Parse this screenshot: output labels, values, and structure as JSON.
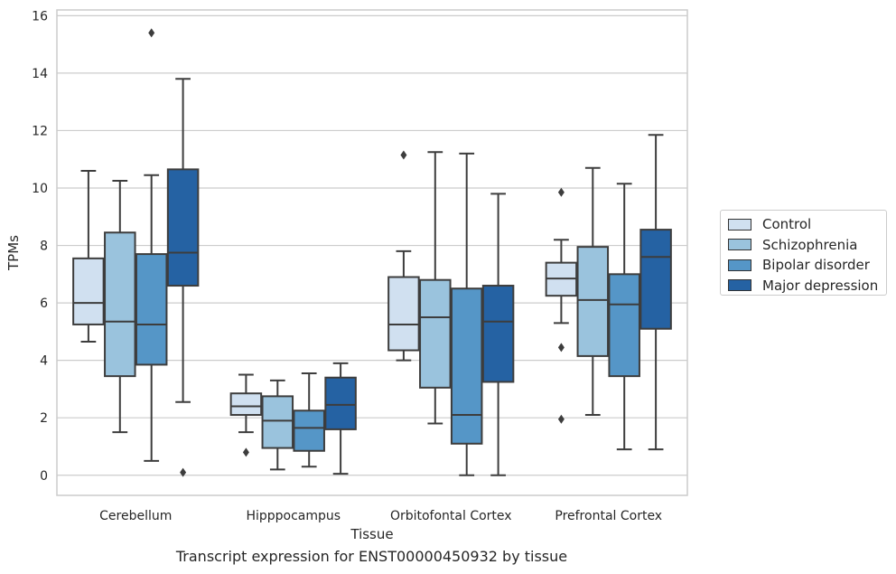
{
  "chart_data": {
    "type": "boxplot",
    "title": "",
    "xlabel": "Tissue",
    "ylabel": "TPMs",
    "caption": "Transcript expression for ENST00000450932 by tissue",
    "ylim": [
      -0.7,
      16.2
    ],
    "yticks": [
      0,
      2,
      4,
      6,
      8,
      10,
      12,
      14,
      16
    ],
    "grid": true,
    "legend_position": "right",
    "categories": [
      "Cerebellum",
      "Hipppocampus",
      "Orbitofontal Cortex",
      "Prefrontal Cortex"
    ],
    "series": [
      {
        "name": "Control",
        "color": "#d0e0f0",
        "boxes": [
          {
            "low": 4.65,
            "q1": 5.25,
            "median": 6.0,
            "q3": 7.55,
            "high": 10.6,
            "outliers": []
          },
          {
            "low": 1.5,
            "q1": 2.1,
            "median": 2.4,
            "q3": 2.85,
            "high": 3.5,
            "outliers": [
              0.8
            ]
          },
          {
            "low": 4.0,
            "q1": 4.35,
            "median": 5.25,
            "q3": 6.9,
            "high": 7.8,
            "outliers": [
              11.15
            ]
          },
          {
            "low": 5.3,
            "q1": 6.25,
            "median": 6.85,
            "q3": 7.4,
            "high": 8.2,
            "outliers": [
              9.85,
              4.45,
              1.95
            ]
          }
        ]
      },
      {
        "name": "Schizophrenia",
        "color": "#9ac3dd",
        "boxes": [
          {
            "low": 1.5,
            "q1": 3.45,
            "median": 5.35,
            "q3": 8.45,
            "high": 10.25,
            "outliers": []
          },
          {
            "low": 0.2,
            "q1": 0.95,
            "median": 1.9,
            "q3": 2.75,
            "high": 3.3,
            "outliers": []
          },
          {
            "low": 1.8,
            "q1": 3.05,
            "median": 5.5,
            "q3": 6.8,
            "high": 11.25,
            "outliers": []
          },
          {
            "low": 2.1,
            "q1": 4.15,
            "median": 6.1,
            "q3": 7.95,
            "high": 10.7,
            "outliers": []
          }
        ]
      },
      {
        "name": "Bipolar disorder",
        "color": "#5596c7",
        "boxes": [
          {
            "low": 0.5,
            "q1": 3.85,
            "median": 5.25,
            "q3": 7.7,
            "high": 10.45,
            "outliers": [
              15.4
            ]
          },
          {
            "low": 0.3,
            "q1": 0.85,
            "median": 1.65,
            "q3": 2.25,
            "high": 3.55,
            "outliers": []
          },
          {
            "low": 0.0,
            "q1": 1.1,
            "median": 2.1,
            "q3": 6.5,
            "high": 11.2,
            "outliers": []
          },
          {
            "low": 0.9,
            "q1": 3.45,
            "median": 5.95,
            "q3": 7.0,
            "high": 10.15,
            "outliers": []
          }
        ]
      },
      {
        "name": "Major depression",
        "color": "#2562a3",
        "boxes": [
          {
            "low": 2.55,
            "q1": 6.6,
            "median": 7.75,
            "q3": 10.65,
            "high": 13.8,
            "outliers": [
              0.1
            ]
          },
          {
            "low": 0.05,
            "q1": 1.6,
            "median": 2.45,
            "q3": 3.4,
            "high": 3.9,
            "outliers": []
          },
          {
            "low": 0.0,
            "q1": 3.25,
            "median": 5.35,
            "q3": 6.6,
            "high": 9.8,
            "outliers": []
          },
          {
            "low": 0.9,
            "q1": 5.1,
            "median": 7.6,
            "q3": 8.55,
            "high": 11.85,
            "outliers": []
          }
        ]
      }
    ]
  }
}
